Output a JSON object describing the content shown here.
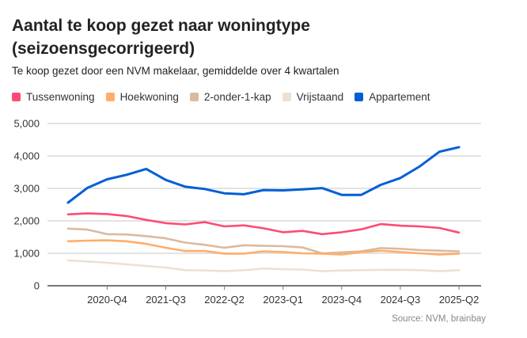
{
  "chart_data": {
    "type": "line",
    "title": "Aantal te koop gezet naar woningtype (seizoensgecorrigeerd)",
    "subtitle": "Te koop gezet door een NVM makelaar, gemiddelde over 4 kwartalen",
    "xlabel": "",
    "ylabel": "",
    "ylim": [
      0,
      5000
    ],
    "yticks": [
      0,
      1000,
      2000,
      3000,
      4000,
      5000
    ],
    "ytick_labels": [
      "0",
      "1,000",
      "2,000",
      "3,000",
      "4,000",
      "5,000"
    ],
    "x": [
      "2020-Q2",
      "2020-Q3",
      "2020-Q4",
      "2021-Q1",
      "2021-Q2",
      "2021-Q3",
      "2021-Q4",
      "2022-Q1",
      "2022-Q2",
      "2022-Q3",
      "2022-Q4",
      "2023-Q1",
      "2023-Q2",
      "2023-Q3",
      "2023-Q4",
      "2024-Q1",
      "2024-Q2",
      "2024-Q3",
      "2024-Q4",
      "2025-Q1",
      "2025-Q2"
    ],
    "xtick_labels": [
      "2020-Q4",
      "2021-Q3",
      "2022-Q2",
      "2023-Q1",
      "2023-Q4",
      "2024-Q3",
      "2025-Q2"
    ],
    "grid": true,
    "legend_placement": "top-left",
    "series": [
      {
        "name": "Tussenwoning",
        "color": "#ff4a75",
        "values": [
          2200,
          2230,
          2210,
          2150,
          2030,
          1930,
          1890,
          1960,
          1830,
          1860,
          1770,
          1650,
          1690,
          1590,
          1650,
          1740,
          1900,
          1850,
          1830,
          1780,
          1640
        ]
      },
      {
        "name": "Hoekwoning",
        "color": "#ffad6a",
        "values": [
          1370,
          1390,
          1400,
          1370,
          1290,
          1170,
          1070,
          1070,
          990,
          990,
          1060,
          1040,
          1000,
          990,
          960,
          1040,
          1080,
          1040,
          1000,
          960,
          990
        ]
      },
      {
        "name": "2-onder-1-kap",
        "color": "#d9bba1",
        "values": [
          1760,
          1730,
          1590,
          1580,
          1530,
          1460,
          1330,
          1260,
          1170,
          1250,
          1230,
          1220,
          1180,
          1000,
          1030,
          1060,
          1160,
          1140,
          1100,
          1080,
          1060
        ]
      },
      {
        "name": "Vrijstaand",
        "color": "#ede0d3",
        "values": [
          780,
          750,
          710,
          660,
          610,
          560,
          480,
          470,
          450,
          480,
          530,
          510,
          500,
          450,
          470,
          480,
          490,
          490,
          480,
          450,
          480
        ]
      },
      {
        "name": "Appartement",
        "color": "#005fd6",
        "values": [
          2560,
          3020,
          3280,
          3420,
          3600,
          3260,
          3050,
          2980,
          2850,
          2820,
          2950,
          2940,
          2970,
          3010,
          2800,
          2800,
          3110,
          3320,
          3680,
          4130,
          4270
        ]
      }
    ],
    "source": "Source:  NVM, brainbay"
  }
}
